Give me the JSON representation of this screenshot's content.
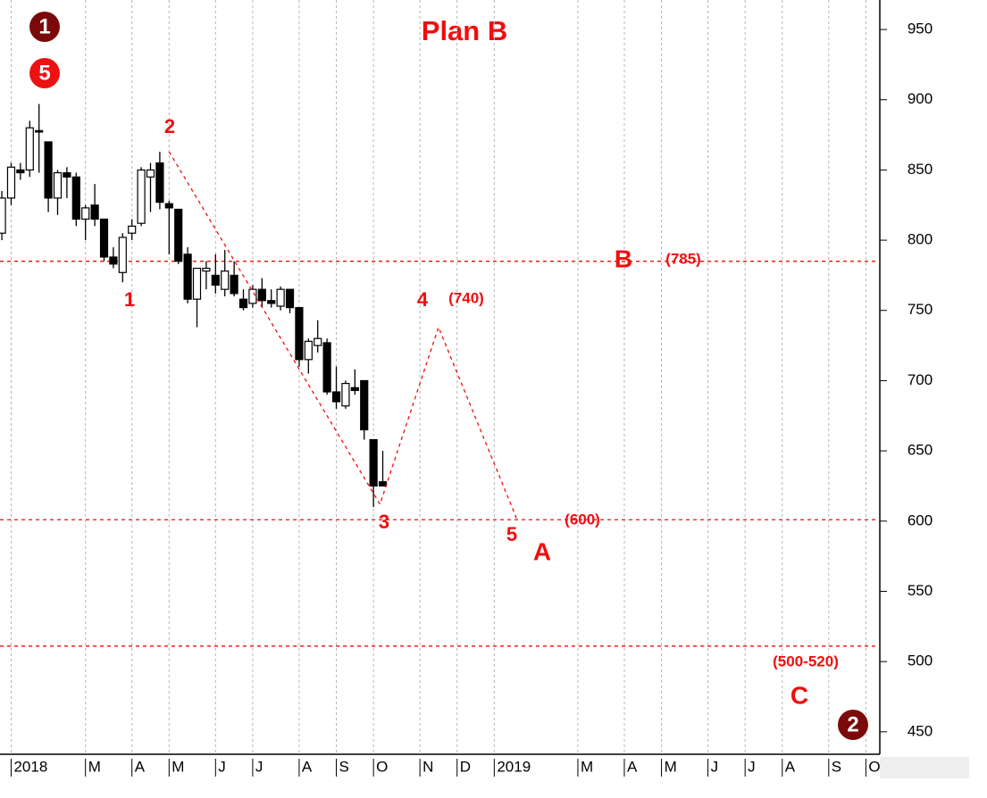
{
  "chart_data": {
    "type": "candlestick",
    "title": "Plan B",
    "xlim": [
      -1.2,
      93.5
    ],
    "ylim": [
      434,
      971
    ],
    "xticks": [
      {
        "value": 0,
        "label": "2018"
      },
      {
        "value": 8,
        "label": "M"
      },
      {
        "value": 13,
        "label": "A"
      },
      {
        "value": 17,
        "label": "M"
      },
      {
        "value": 22,
        "label": "J"
      },
      {
        "value": 26,
        "label": "J"
      },
      {
        "value": 31,
        "label": "A"
      },
      {
        "value": 35,
        "label": "S"
      },
      {
        "value": 39,
        "label": "O"
      },
      {
        "value": 44,
        "label": "N"
      },
      {
        "value": 48,
        "label": "D"
      },
      {
        "value": 52,
        "label": "2019"
      },
      {
        "value": 61,
        "label": "M"
      },
      {
        "value": 66,
        "label": "A"
      },
      {
        "value": 70,
        "label": "M"
      },
      {
        "value": 75,
        "label": "J"
      },
      {
        "value": 79,
        "label": "J"
      },
      {
        "value": 83,
        "label": "A"
      },
      {
        "value": 88,
        "label": "S"
      },
      {
        "value": 92,
        "label": "O"
      }
    ],
    "yticks": [
      450,
      500,
      550,
      600,
      650,
      700,
      750,
      800,
      850,
      900,
      950
    ],
    "grid": true,
    "candles": {
      "x": [
        -1,
        0,
        1,
        2,
        3,
        4,
        5,
        6,
        7,
        8,
        9,
        10,
        11,
        12,
        13,
        14,
        15,
        16,
        17,
        18,
        19,
        20,
        21,
        22,
        23,
        24,
        25,
        26,
        27,
        28,
        29,
        30,
        31,
        32,
        33,
        34,
        35,
        36,
        37,
        38,
        39,
        40
      ],
      "open": [
        805,
        830,
        850,
        850,
        878,
        870,
        830,
        848,
        845,
        815,
        825,
        815,
        788,
        777,
        805,
        812,
        845,
        855,
        826,
        822,
        790,
        758,
        778,
        775,
        765,
        775,
        758,
        755,
        765,
        757,
        753,
        765,
        752,
        715,
        725,
        727,
        692,
        682,
        695,
        700,
        658,
        628
      ],
      "high": [
        835,
        855,
        855,
        885,
        897,
        870,
        850,
        852,
        848,
        825,
        840,
        815,
        795,
        805,
        815,
        852,
        855,
        863,
        828,
        822,
        795,
        780,
        785,
        790,
        793,
        785,
        765,
        768,
        773,
        765,
        767,
        765,
        752,
        730,
        743,
        730,
        710,
        700,
        708,
        700,
        658,
        650
      ],
      "low": [
        800,
        825,
        843,
        845,
        848,
        820,
        818,
        830,
        810,
        800,
        810,
        785,
        780,
        770,
        800,
        810,
        820,
        822,
        790,
        783,
        755,
        738,
        765,
        762,
        760,
        760,
        750,
        752,
        752,
        752,
        750,
        748,
        710,
        705,
        720,
        690,
        680,
        680,
        690,
        658,
        610,
        625
      ],
      "close": [
        830,
        852,
        848,
        880,
        877,
        830,
        848,
        845,
        815,
        823,
        815,
        788,
        783,
        802,
        810,
        850,
        850,
        827,
        823,
        785,
        758,
        780,
        780,
        768,
        778,
        762,
        752,
        765,
        757,
        755,
        765,
        752,
        715,
        728,
        730,
        692,
        685,
        698,
        693,
        665,
        625,
        625
      ]
    },
    "levels": [
      785,
      601,
      511
    ],
    "wave_path": {
      "x": [
        17,
        39.7,
        46,
        54.4
      ],
      "y": [
        863,
        612,
        738,
        602
      ]
    },
    "annotations": [
      "2",
      "1",
      "3",
      "4",
      "(740)",
      "5",
      "A",
      "B",
      "(785)",
      "(600)",
      "(500-520)",
      "C"
    ],
    "circled": [
      "1",
      "5",
      "2"
    ]
  }
}
